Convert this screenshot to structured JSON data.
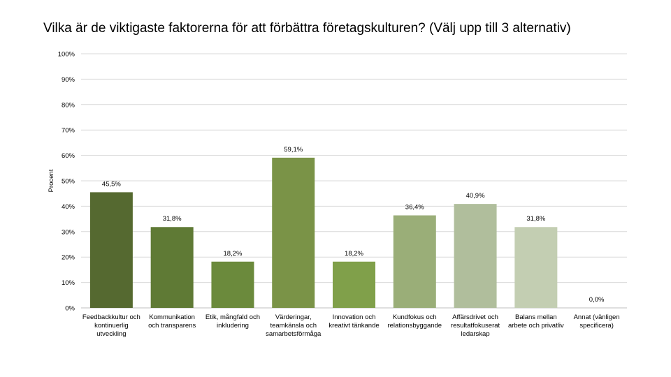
{
  "title": "Vilka är de viktigaste faktorerna för att förbättra företagskulturen? (Välj upp till 3 alternativ)",
  "chart_data": {
    "type": "bar",
    "title": "Vilka är de viktigaste faktorerna för att förbättra företagskulturen? (Välj upp till 3 alternativ)",
    "xlabel": "",
    "ylabel": "Procent",
    "ylim": [
      0,
      100
    ],
    "yticks": [
      "0%",
      "10%",
      "20%",
      "30%",
      "40%",
      "50%",
      "60%",
      "70%",
      "80%",
      "90%",
      "100%"
    ],
    "grid": true,
    "categories": [
      "Feedbackkultur och kontinuerlig utveckling",
      "Kommunikation och transparens",
      "Etik, mångfald och inkludering",
      "Värderingar, teamkänsla och samarbetsförmåga",
      "Innovation och kreativt tänkande",
      "Kundfokus och relationsbyggande",
      "Affärsdrivet och resultatfokuserat ledarskap",
      "Balans mellan arbete och privatliv",
      "Annat (vänligen specificera)"
    ],
    "category_lines": [
      [
        "Feedbackkultur och",
        "kontinuerlig",
        "utveckling"
      ],
      [
        "Kommunikation",
        "och transparens"
      ],
      [
        "Etik, mångfald och",
        "inkludering"
      ],
      [
        "Värderingar,",
        "teamkänsla och",
        "samarbetsförmåga"
      ],
      [
        "Innovation och",
        "kreativt tänkande"
      ],
      [
        "Kundfokus och",
        "relationsbyggande"
      ],
      [
        "Affärsdrivet och",
        "resultatfokuserat",
        "ledarskap"
      ],
      [
        "Balans mellan",
        "arbete och privatliv"
      ],
      [
        "Annat (vänligen",
        "specificera)"
      ]
    ],
    "values": [
      45.5,
      31.8,
      18.2,
      59.1,
      18.2,
      36.4,
      40.9,
      31.8,
      0.0
    ],
    "data_labels": [
      "45,5%",
      "31,8%",
      "18,2%",
      "59,1%",
      "18,2%",
      "36,4%",
      "40,9%",
      "31,8%",
      "0,0%"
    ],
    "colors": [
      "#556930",
      "#5f7a35",
      "#6b8a3c",
      "#7a9347",
      "#80a04a",
      "#9aae78",
      "#b0be9c",
      "#c3ceb2",
      "#d6dccb"
    ],
    "gridline_color": "#d9d9d9",
    "axis_color": "#bfbfbf"
  }
}
